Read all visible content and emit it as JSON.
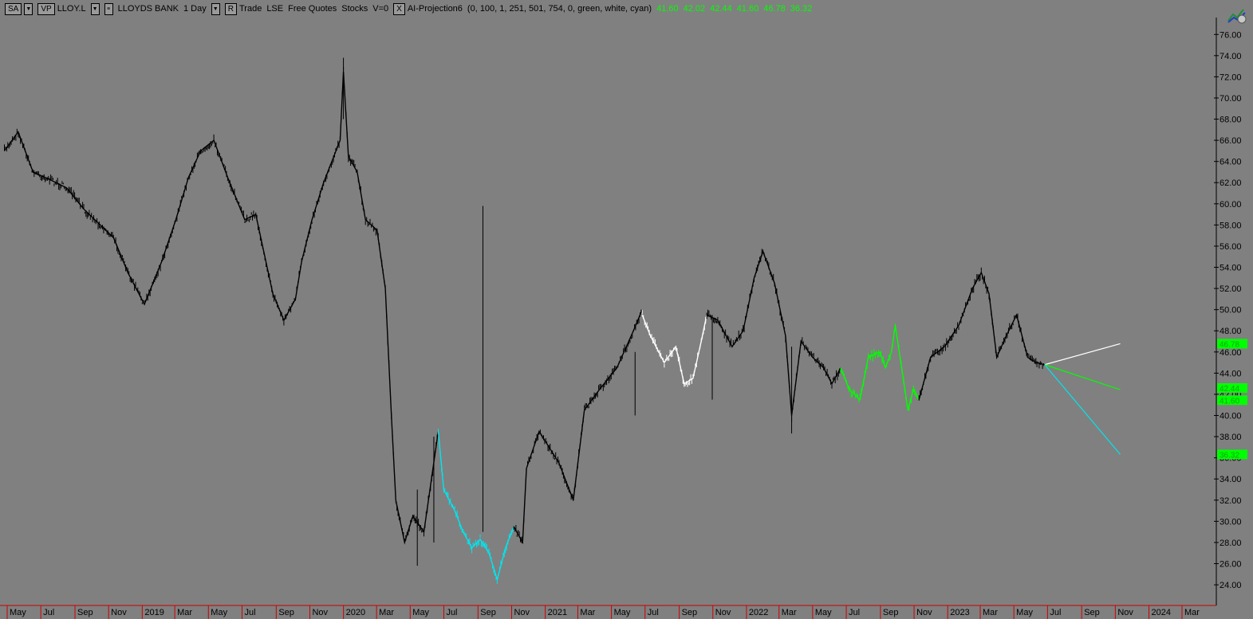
{
  "toolbar": {
    "sa_label": "SA",
    "vp_label": "VP",
    "symbol": "LLOY.L",
    "name": "LLOYDS BANK",
    "interval": "1 Day",
    "r_label": "R",
    "trade": "Trade",
    "exchange": "LSE",
    "quotes": "Free Quotes",
    "type": "Stocks",
    "volume": "V=0",
    "close_label": "X",
    "indicator": "AI-Projection6",
    "indicator_params": "(0,  100,  1,  251,  501,  754,  0,  green,  white,  cyan)",
    "indicator_values": [
      "41.60",
      "42.02",
      "42.44",
      "41.60",
      "46.78",
      "36.32"
    ]
  },
  "colors": {
    "background": "#808080",
    "price": "#000000",
    "green": "#00ff00",
    "white": "#ffffff",
    "cyan": "#00e5ee",
    "axis": "#cc0000"
  },
  "chart_data": {
    "type": "line",
    "title": "",
    "xlabel": "",
    "ylabel": "",
    "ylim": [
      22.2,
      77.6
    ],
    "y_ticks": [
      "76.00",
      "74.00",
      "72.00",
      "70.00",
      "68.00",
      "66.00",
      "64.00",
      "62.00",
      "60.00",
      "58.00",
      "56.00",
      "54.00",
      "52.00",
      "50.00",
      "48.00",
      "46.00",
      "44.00",
      "42.00",
      "40.00",
      "38.00",
      "36.00",
      "34.00",
      "32.00",
      "30.00",
      "28.00",
      "26.00",
      "24.00"
    ],
    "x_ticks": [
      "May",
      "Jul",
      "Sep",
      "Nov",
      "2019",
      "Mar",
      "May",
      "Jul",
      "Sep",
      "Nov",
      "2020",
      "Mar",
      "May",
      "Jul",
      "Sep",
      "Nov",
      "2021",
      "Mar",
      "May",
      "Jul",
      "Sep",
      "Nov",
      "2022",
      "Mar",
      "May",
      "Jul",
      "Sep",
      "Nov",
      "2023",
      "Mar",
      "May",
      "Jul",
      "Sep",
      "Nov",
      "2024",
      "Mar"
    ],
    "x_tick_dates": [
      "2018-05-01",
      "2018-07-01",
      "2018-09-01",
      "2018-11-01",
      "2019-01-01",
      "2019-03-01",
      "2019-05-01",
      "2019-07-01",
      "2019-09-01",
      "2019-11-01",
      "2020-01-01",
      "2020-03-01",
      "2020-05-01",
      "2020-07-01",
      "2020-09-01",
      "2020-11-01",
      "2021-01-01",
      "2021-03-01",
      "2021-05-01",
      "2021-07-01",
      "2021-09-01",
      "2021-11-01",
      "2022-01-01",
      "2022-03-01",
      "2022-05-01",
      "2022-07-01",
      "2022-09-01",
      "2022-11-01",
      "2023-01-01",
      "2023-03-01",
      "2023-05-01",
      "2023-07-01",
      "2023-09-01",
      "2023-11-01",
      "2024-01-01",
      "2024-03-01"
    ],
    "series": [
      {
        "color": "black",
        "points": [
          [
            "2018-04-10",
            65.0
          ],
          [
            "2018-05-05",
            66.8
          ],
          [
            "2018-06-01",
            63.0
          ],
          [
            "2018-07-01",
            62.3
          ],
          [
            "2018-08-01",
            61.5
          ],
          [
            "2018-09-01",
            59.5
          ],
          [
            "2018-10-01",
            58.0
          ],
          [
            "2018-10-25",
            56.8
          ],
          [
            "2018-11-20",
            53.5
          ],
          [
            "2018-12-20",
            50.5
          ],
          [
            "2019-01-20",
            54.5
          ],
          [
            "2019-02-15",
            58.5
          ],
          [
            "2019-03-10",
            62.5
          ],
          [
            "2019-04-01",
            65.0
          ],
          [
            "2019-04-25",
            66.0
          ],
          [
            "2019-05-20",
            62.5
          ],
          [
            "2019-06-20",
            58.5
          ],
          [
            "2019-07-10",
            59.0
          ],
          [
            "2019-08-10",
            51.5
          ],
          [
            "2019-08-30",
            49.0
          ],
          [
            "2019-09-20",
            51.0
          ],
          [
            "2019-10-01",
            54.5
          ],
          [
            "2019-10-20",
            58.5
          ],
          [
            "2019-11-10",
            62.0
          ],
          [
            "2019-12-10",
            66.0
          ],
          [
            "2019-12-16",
            72.5
          ],
          [
            "2019-12-25",
            64.5
          ],
          [
            "2020-01-10",
            63.0
          ],
          [
            "2020-01-25",
            58.5
          ],
          [
            "2020-02-15",
            57.5
          ],
          [
            "2020-03-01",
            52.0
          ],
          [
            "2020-03-12",
            40.0
          ],
          [
            "2020-03-20",
            32.0
          ],
          [
            "2020-04-05",
            28.0
          ],
          [
            "2020-04-20",
            30.5
          ],
          [
            "2020-05-10",
            29.0
          ],
          [
            "2020-06-05",
            38.5
          ]
        ]
      },
      {
        "color": "cyan",
        "points": [
          [
            "2020-06-05",
            38.5
          ],
          [
            "2020-06-15",
            33.0
          ],
          [
            "2020-07-05",
            31.0
          ],
          [
            "2020-07-20",
            29.0
          ],
          [
            "2020-08-05",
            27.5
          ],
          [
            "2020-08-20",
            28.3
          ],
          [
            "2020-09-05",
            27.0
          ],
          [
            "2020-09-20",
            24.5
          ],
          [
            "2020-10-05",
            27.5
          ],
          [
            "2020-10-20",
            29.5
          ]
        ]
      },
      {
        "color": "black",
        "points": [
          [
            "2020-10-20",
            29.5
          ],
          [
            "2020-11-05",
            28.0
          ],
          [
            "2020-11-12",
            35.0
          ],
          [
            "2020-12-05",
            38.5
          ],
          [
            "2021-01-10",
            35.5
          ],
          [
            "2021-02-05",
            32.0
          ],
          [
            "2021-02-25",
            40.5
          ],
          [
            "2021-03-25",
            42.5
          ],
          [
            "2021-04-25",
            44.5
          ],
          [
            "2021-05-25",
            48.0
          ],
          [
            "2021-06-10",
            50.0
          ]
        ]
      },
      {
        "color": "white",
        "points": [
          [
            "2021-06-10",
            49.5
          ],
          [
            "2021-06-25",
            47.5
          ],
          [
            "2021-07-20",
            45.0
          ],
          [
            "2021-08-10",
            46.5
          ],
          [
            "2021-08-25",
            43.0
          ],
          [
            "2021-09-10",
            43.5
          ],
          [
            "2021-09-25",
            47.0
          ],
          [
            "2021-10-05",
            49.5
          ]
        ]
      },
      {
        "color": "black",
        "points": [
          [
            "2021-10-05",
            49.5
          ],
          [
            "2021-10-25",
            49.0
          ],
          [
            "2021-11-20",
            46.5
          ],
          [
            "2021-12-10",
            48.0
          ],
          [
            "2021-12-30",
            53.0
          ],
          [
            "2022-01-15",
            55.5
          ],
          [
            "2022-02-05",
            52.5
          ],
          [
            "2022-02-25",
            47.5
          ],
          [
            "2022-03-08",
            40.0
          ],
          [
            "2022-03-25",
            47.0
          ],
          [
            "2022-04-15",
            45.5
          ],
          [
            "2022-05-05",
            44.5
          ],
          [
            "2022-05-20",
            43.0
          ],
          [
            "2022-06-05",
            44.5
          ]
        ]
      },
      {
        "color": "green",
        "points": [
          [
            "2022-06-05",
            44.5
          ],
          [
            "2022-06-20",
            42.5
          ],
          [
            "2022-07-10",
            41.5
          ],
          [
            "2022-07-25",
            45.5
          ],
          [
            "2022-08-15",
            46.0
          ],
          [
            "2022-08-25",
            44.5
          ],
          [
            "2022-09-05",
            46.0
          ],
          [
            "2022-09-12",
            48.5
          ],
          [
            "2022-09-25",
            44.0
          ],
          [
            "2022-10-05",
            40.5
          ],
          [
            "2022-10-15",
            42.5
          ],
          [
            "2022-10-25",
            41.5
          ]
        ]
      },
      {
        "color": "black",
        "points": [
          [
            "2022-10-25",
            41.5
          ],
          [
            "2022-11-15",
            45.5
          ],
          [
            "2022-12-10",
            46.5
          ],
          [
            "2023-01-05",
            48.5
          ],
          [
            "2023-01-30",
            52.0
          ],
          [
            "2023-02-15",
            53.5
          ],
          [
            "2023-03-01",
            51.5
          ],
          [
            "2023-03-15",
            45.5
          ],
          [
            "2023-04-01",
            47.5
          ],
          [
            "2023-04-20",
            49.5
          ],
          [
            "2023-05-10",
            45.5
          ],
          [
            "2023-05-25",
            45.0
          ],
          [
            "2023-06-10",
            44.8
          ]
        ]
      }
    ],
    "projections": [
      {
        "color": "white",
        "start": [
          "2023-06-10",
          44.8
        ],
        "end": [
          "2023-10-25",
          46.78
        ]
      },
      {
        "color": "green",
        "start": [
          "2023-06-10",
          44.8
        ],
        "end": [
          "2023-10-25",
          42.44
        ]
      },
      {
        "color": "cyan",
        "start": [
          "2023-06-10",
          44.8
        ],
        "end": [
          "2023-10-25",
          36.32
        ]
      }
    ],
    "price_labels": [
      {
        "value": "46.78",
        "color": "green"
      },
      {
        "value": "42.44",
        "color": "green"
      },
      {
        "value": "41.60",
        "color": "green"
      },
      {
        "value": "36.32",
        "color": "green"
      }
    ],
    "grid": false
  }
}
